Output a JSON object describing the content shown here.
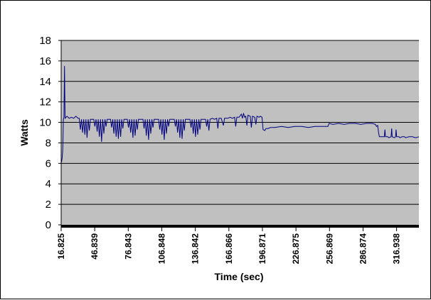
{
  "chart_data": {
    "type": "line",
    "title": "",
    "xlabel": "Time (sec)",
    "ylabel": "Watts",
    "ylim": [
      0,
      18
    ],
    "yticks": [
      0,
      2,
      4,
      6,
      8,
      10,
      12,
      14,
      16,
      18
    ],
    "xlim": [
      16.825,
      336.9
    ],
    "xtick_labels": [
      "16.825",
      "46.839",
      "76.843",
      "106.848",
      "136.842",
      "166.866",
      "196.871",
      "226.875",
      "256.869",
      "286.874",
      "316.938"
    ],
    "grid": true,
    "legend": "none",
    "colors": {
      "plot_background": "#c0c0c0",
      "line": "#000080",
      "gridline": "#000000",
      "frame": "#000000"
    },
    "series": [
      {
        "values": [
          [
            16.8,
            6.3
          ],
          [
            17.3,
            6.2
          ],
          [
            17.8,
            6.6
          ],
          [
            18.3,
            7.5
          ],
          [
            18.8,
            10.3
          ],
          [
            19.3,
            10.5
          ],
          [
            19.8,
            15.5
          ],
          [
            20.3,
            10.4
          ],
          [
            22,
            10.6
          ],
          [
            24,
            10.4
          ],
          [
            26,
            10.5
          ],
          [
            28,
            10.4
          ],
          [
            30,
            10.6
          ],
          [
            32,
            10.4
          ],
          [
            33,
            10.4
          ],
          [
            34,
            9.3
          ],
          [
            35,
            10.3
          ],
          [
            36,
            9.0
          ],
          [
            37,
            10.3
          ],
          [
            38,
            8.8
          ],
          [
            39,
            10.3
          ],
          [
            40,
            8.5
          ],
          [
            41,
            10.3
          ],
          [
            42,
            9.2
          ],
          [
            43,
            10.3
          ],
          [
            46,
            10.3
          ],
          [
            47,
            9.6
          ],
          [
            48,
            10.3
          ],
          [
            49,
            9.1
          ],
          [
            50,
            10.3
          ],
          [
            51,
            8.6
          ],
          [
            52,
            10.3
          ],
          [
            53,
            8.1
          ],
          [
            54,
            10.3
          ],
          [
            55,
            8.9
          ],
          [
            56,
            10.3
          ],
          [
            57,
            9.6
          ],
          [
            58,
            10.3
          ],
          [
            61,
            10.3
          ],
          [
            62,
            9.5
          ],
          [
            63,
            10.3
          ],
          [
            64,
            8.9
          ],
          [
            65,
            10.3
          ],
          [
            66,
            8.6
          ],
          [
            67,
            10.3
          ],
          [
            68,
            8.4
          ],
          [
            69,
            10.3
          ],
          [
            70,
            8.6
          ],
          [
            71,
            10.3
          ],
          [
            72,
            9.4
          ],
          [
            73,
            10.3
          ],
          [
            76,
            10.3
          ],
          [
            77,
            9.5
          ],
          [
            78,
            10.3
          ],
          [
            79,
            9.0
          ],
          [
            80,
            10.3
          ],
          [
            81,
            8.5
          ],
          [
            82,
            10.3
          ],
          [
            83,
            8.7
          ],
          [
            84,
            10.3
          ],
          [
            85,
            9.3
          ],
          [
            86,
            10.3
          ],
          [
            90,
            10.3
          ],
          [
            91,
            9.4
          ],
          [
            92,
            10.3
          ],
          [
            93,
            8.7
          ],
          [
            94,
            10.3
          ],
          [
            95,
            8.3
          ],
          [
            96,
            10.3
          ],
          [
            97,
            8.9
          ],
          [
            98,
            10.3
          ],
          [
            99,
            9.5
          ],
          [
            100,
            10.3
          ],
          [
            104,
            10.3
          ],
          [
            105,
            9.3
          ],
          [
            106,
            10.3
          ],
          [
            107,
            8.8
          ],
          [
            108,
            10.3
          ],
          [
            109,
            8.3
          ],
          [
            110,
            10.3
          ],
          [
            111,
            8.9
          ],
          [
            112,
            10.3
          ],
          [
            113,
            9.6
          ],
          [
            114,
            10.3
          ],
          [
            118,
            10.3
          ],
          [
            119,
            9.6
          ],
          [
            120,
            10.3
          ],
          [
            121,
            9.0
          ],
          [
            122,
            10.3
          ],
          [
            123,
            8.5
          ],
          [
            124,
            10.3
          ],
          [
            125,
            8.4
          ],
          [
            126,
            10.3
          ],
          [
            127,
            9.2
          ],
          [
            128,
            10.3
          ],
          [
            132,
            10.3
          ],
          [
            133,
            9.5
          ],
          [
            134,
            10.3
          ],
          [
            135,
            8.9
          ],
          [
            136,
            10.3
          ],
          [
            137,
            8.6
          ],
          [
            138,
            10.3
          ],
          [
            139,
            8.8
          ],
          [
            140,
            10.3
          ],
          [
            141,
            9.3
          ],
          [
            142,
            10.3
          ],
          [
            146,
            10.3
          ],
          [
            147,
            9.6
          ],
          [
            148,
            10.3
          ],
          [
            149,
            9.2
          ],
          [
            150,
            10.3
          ],
          [
            152,
            10.4
          ],
          [
            154,
            10.3
          ],
          [
            156,
            10.4
          ],
          [
            157,
            9.4
          ],
          [
            158,
            10.4
          ],
          [
            160,
            10.4
          ],
          [
            162,
            9.7
          ],
          [
            163,
            10.4
          ],
          [
            166,
            10.4
          ],
          [
            168,
            10.5
          ],
          [
            170,
            10.4
          ],
          [
            172,
            10.5
          ],
          [
            173,
            9.6
          ],
          [
            174,
            10.5
          ],
          [
            176,
            10.5
          ],
          [
            178,
            10.8
          ],
          [
            179,
            10.4
          ],
          [
            180,
            10.9
          ],
          [
            181,
            10.5
          ],
          [
            182,
            10.6
          ],
          [
            183,
            9.7
          ],
          [
            184,
            10.7
          ],
          [
            186,
            10.6
          ],
          [
            187,
            9.5
          ],
          [
            188,
            10.6
          ],
          [
            190,
            10.5
          ],
          [
            191,
            9.8
          ],
          [
            192,
            10.6
          ],
          [
            194,
            10.5
          ],
          [
            195,
            10.6
          ],
          [
            196.5,
            10.5
          ],
          [
            197.5,
            9.3
          ],
          [
            199,
            9.2
          ],
          [
            200,
            9.4
          ],
          [
            202,
            9.4
          ],
          [
            204,
            9.5
          ],
          [
            208,
            9.5
          ],
          [
            214,
            9.6
          ],
          [
            220,
            9.5
          ],
          [
            226,
            9.6
          ],
          [
            232,
            9.6
          ],
          [
            238,
            9.5
          ],
          [
            244,
            9.6
          ],
          [
            250,
            9.6
          ],
          [
            255.5,
            9.6
          ],
          [
            256.5,
            9.9
          ],
          [
            260,
            9.8
          ],
          [
            265,
            9.9
          ],
          [
            270,
            9.8
          ],
          [
            275,
            9.9
          ],
          [
            280,
            9.9
          ],
          [
            285,
            9.8
          ],
          [
            290,
            9.9
          ],
          [
            295,
            9.9
          ],
          [
            298,
            9.8
          ],
          [
            299,
            9.6
          ],
          [
            300,
            9.7
          ],
          [
            300.8,
            9.0
          ],
          [
            301.5,
            8.6
          ],
          [
            304,
            8.6
          ],
          [
            306,
            8.6
          ],
          [
            306.5,
            9.3
          ],
          [
            307,
            8.6
          ],
          [
            309,
            8.6
          ],
          [
            310,
            8.5
          ],
          [
            312,
            8.6
          ],
          [
            312.5,
            9.4
          ],
          [
            313,
            8.6
          ],
          [
            315,
            8.5
          ],
          [
            316,
            8.6
          ],
          [
            316.5,
            9.3
          ],
          [
            317,
            8.6
          ],
          [
            319,
            8.6
          ],
          [
            320,
            8.5
          ],
          [
            322,
            8.6
          ],
          [
            324,
            8.6
          ],
          [
            325,
            8.5
          ],
          [
            328,
            8.6
          ],
          [
            331,
            8.6
          ],
          [
            334,
            8.5
          ],
          [
            336.9,
            8.6
          ]
        ]
      }
    ]
  }
}
